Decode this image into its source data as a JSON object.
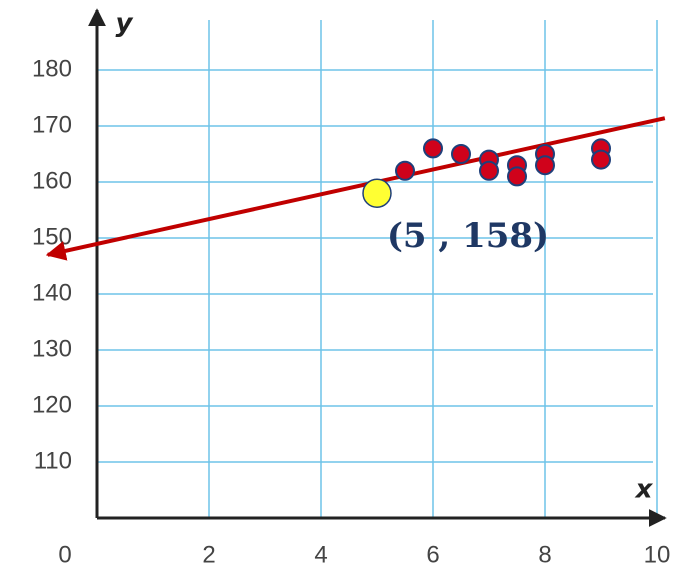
{
  "chart_data": {
    "type": "scatter",
    "x_label": "x",
    "y_label": "y",
    "xlim": [
      0,
      10
    ],
    "ylim": [
      100,
      190
    ],
    "xticks": [
      0,
      2,
      4,
      6,
      8,
      10
    ],
    "yticks": [
      110,
      120,
      130,
      140,
      150,
      160,
      170,
      180
    ],
    "grid": true,
    "series": [
      {
        "color": "#d0021b",
        "x": [
          5.5,
          6,
          6.5,
          7,
          7,
          7.5,
          7.5,
          8,
          8,
          9,
          9
        ],
        "values": [
          162,
          166,
          165,
          164,
          162,
          163,
          161,
          165,
          163,
          166,
          164
        ]
      }
    ],
    "highlight": {
      "x": 5,
      "y": 158,
      "color": "#ffff33",
      "label": "(5 , 158)"
    },
    "trend_line": {
      "color": "#c00000",
      "x": [
        10.14,
        -0.88
      ],
      "values": [
        171.4,
        147
      ]
    }
  }
}
